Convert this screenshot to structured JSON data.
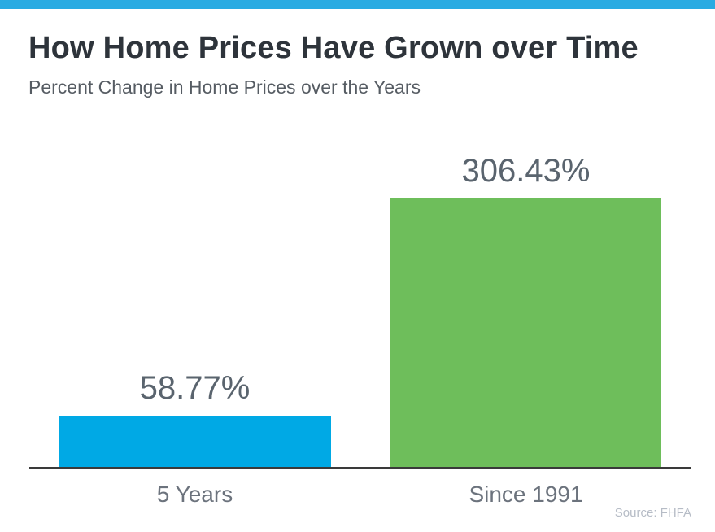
{
  "page": {
    "background": "#ffffff",
    "top_strip_color": "#29abe2"
  },
  "header": {
    "title": "How Home Prices Have Grown over Time",
    "subtitle": "Percent Change in Home Prices over the Years"
  },
  "chart_data": {
    "type": "bar",
    "title": "How Home Prices Have Grown over Time",
    "subtitle": "Percent Change in Home Prices over the Years",
    "categories": [
      "5 Years",
      "Since 1991"
    ],
    "values": [
      58.77,
      306.43
    ],
    "value_labels": [
      "58.77%",
      "306.43%"
    ],
    "bar_colors": [
      "#00a9e5",
      "#6ebe5b"
    ],
    "ylim": [
      0,
      306.43
    ],
    "grid": false,
    "legend": false,
    "baseline_color": "#3a3a3a",
    "source": "Source: FHFA"
  }
}
